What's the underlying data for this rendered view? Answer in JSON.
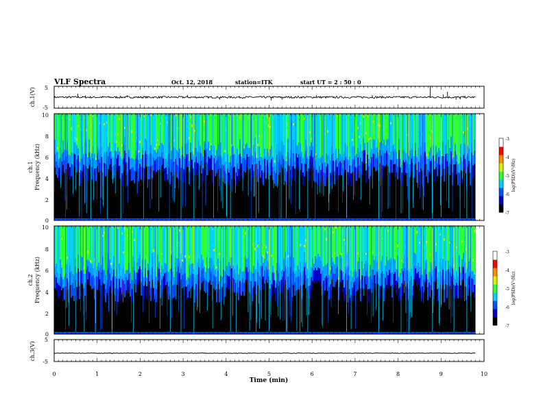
{
  "header": {
    "title": "VLF Spectra",
    "date": "Oct. 12, 2018",
    "station": "station=ITK",
    "start": "start  UT =   2 : 50 : 0"
  },
  "chart_data": [
    {
      "type": "line",
      "panel": "ch1-waveform",
      "ylabel": "ch.1(V)",
      "ylim": [
        -5,
        5
      ],
      "yticks": [
        "5",
        "-5"
      ],
      "xlim": [
        0,
        10
      ],
      "series": [
        {
          "color": "#000000",
          "baseline": 0,
          "spikes": [
            {
              "x": 0.55,
              "y": 1.6
            },
            {
              "x": 0.73,
              "y": 0.8
            },
            {
              "x": 1.7,
              "y": 0.9
            },
            {
              "x": 3.1,
              "y": 1.0
            },
            {
              "x": 3.85,
              "y": -1.0
            },
            {
              "x": 5.05,
              "y": -1.5
            },
            {
              "x": 5.3,
              "y": -1.0
            },
            {
              "x": 6.1,
              "y": 0.9
            },
            {
              "x": 7.4,
              "y": 0.9
            },
            {
              "x": 8.75,
              "y": 4.8
            },
            {
              "x": 9.05,
              "y": 1.2
            },
            {
              "x": 9.15,
              "y": 2.5
            },
            {
              "x": 9.35,
              "y": -1.2
            },
            {
              "x": 9.45,
              "y": -0.9
            }
          ]
        }
      ]
    },
    {
      "type": "heatmap",
      "panel": "ch1-spectrogram",
      "ylabel_top": "ch.1",
      "ylabel": "Frequency (kHz)",
      "ylim": [
        0,
        10
      ],
      "yticks": [
        "0",
        "2",
        "4",
        "6",
        "8",
        "10"
      ],
      "xlim": [
        0,
        9.8
      ],
      "colorbar": {
        "label": "log(PSD)(V²/Hz)",
        "range": [
          -7,
          -3
        ],
        "ticks": [
          "-3",
          "-4",
          "-5",
          "-6",
          "-7"
        ],
        "colors": [
          "#000000",
          "#0000c8",
          "#0050ff",
          "#00d2ff",
          "#32ff32",
          "#dcf000",
          "#ff8c00",
          "#ff0000",
          "#ffffff"
        ]
      },
      "noise_floor_khz": 5.5,
      "bright_lines_min": [
        0.85,
        1.55,
        2.95,
        3.25,
        4.1,
        4.7,
        5.0,
        5.4,
        5.9,
        6.8,
        7.55,
        8.25,
        8.8,
        9.0,
        9.6
      ]
    },
    {
      "type": "heatmap",
      "panel": "ch2-spectrogram",
      "ylabel_top": "ch.2",
      "ylabel": "Frequency (kHz)",
      "ylim": [
        0,
        10
      ],
      "yticks": [
        "0",
        "2",
        "4",
        "6",
        "8",
        "10"
      ],
      "xlim": [
        0,
        9.8
      ],
      "colorbar": {
        "label": "log(PSD)(V²/Hz)",
        "range": [
          -7,
          -3
        ],
        "ticks": [
          "-3",
          "-4",
          "-5",
          "-6",
          "-7"
        ],
        "colors": [
          "#000000",
          "#0000c8",
          "#0050ff",
          "#00d2ff",
          "#32ff32",
          "#dcf000",
          "#ff8c00",
          "#ff0000",
          "#ffffff"
        ]
      },
      "noise_floor_khz": 5.2,
      "bright_lines_min": [
        0.7,
        1.35,
        2.7,
        2.95,
        3.25,
        4.1,
        4.7,
        5.0,
        5.4,
        5.9,
        6.8,
        7.55,
        8.25,
        8.8,
        9.3,
        9.6
      ]
    },
    {
      "type": "line",
      "panel": "ch3-waveform",
      "ylabel": "ch.3(V)",
      "ylim": [
        -5,
        5
      ],
      "yticks": [
        "5",
        "-5"
      ],
      "xlim": [
        0,
        10
      ],
      "xlabel": "Time  (min)",
      "xticks": [
        "0",
        "1",
        "2",
        "3",
        "4",
        "5",
        "6",
        "7",
        "8",
        "9",
        "10"
      ],
      "series": [
        {
          "color": "#000000",
          "baseline": -1.2
        }
      ]
    }
  ]
}
